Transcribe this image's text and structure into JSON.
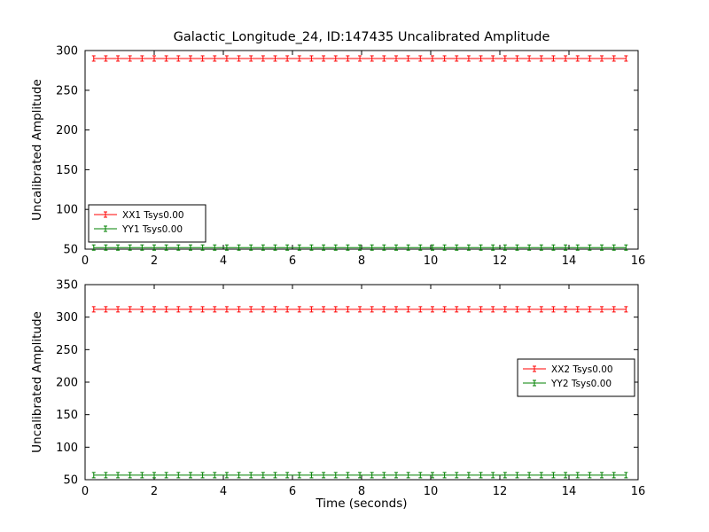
{
  "figure": {
    "title": "Galactic_Longitude_24, ID:147435 Uncalibrated Amplitude",
    "background": "#ffffff",
    "axis_color": "#000000"
  },
  "chart_data": [
    {
      "type": "line",
      "title": "",
      "xlabel": "",
      "ylabel": "Uncalibrated Amplitude",
      "xlim": [
        0,
        16
      ],
      "ylim": [
        50,
        300
      ],
      "xticks": [
        0,
        2,
        4,
        6,
        8,
        10,
        12,
        14,
        16
      ],
      "yticks": [
        50,
        100,
        150,
        200,
        250,
        300
      ],
      "grid": false,
      "marker": "errorbar",
      "legend_position": "lower left",
      "x": {
        "start": 0.25,
        "stop": 15.65,
        "count": 45
      },
      "series": [
        {
          "name": "XX1 Tsys0.00",
          "color": "#ff0000",
          "y_const": 290
        },
        {
          "name": "YY1 Tsys0.00",
          "color": "#008000",
          "y_const": 52
        }
      ]
    },
    {
      "type": "line",
      "title": "",
      "xlabel": "Time (seconds)",
      "ylabel": "Uncalibrated Amplitude",
      "xlim": [
        0,
        16
      ],
      "ylim": [
        50,
        350
      ],
      "xticks": [
        0,
        2,
        4,
        6,
        8,
        10,
        12,
        14,
        16
      ],
      "yticks": [
        50,
        100,
        150,
        200,
        250,
        300,
        350
      ],
      "grid": false,
      "marker": "errorbar",
      "legend_position": "center right",
      "x": {
        "start": 0.25,
        "stop": 15.65,
        "count": 45
      },
      "series": [
        {
          "name": "XX2 Tsys0.00",
          "color": "#ff0000",
          "y_const": 312
        },
        {
          "name": "YY2 Tsys0.00",
          "color": "#008000",
          "y_const": 57
        }
      ]
    }
  ]
}
